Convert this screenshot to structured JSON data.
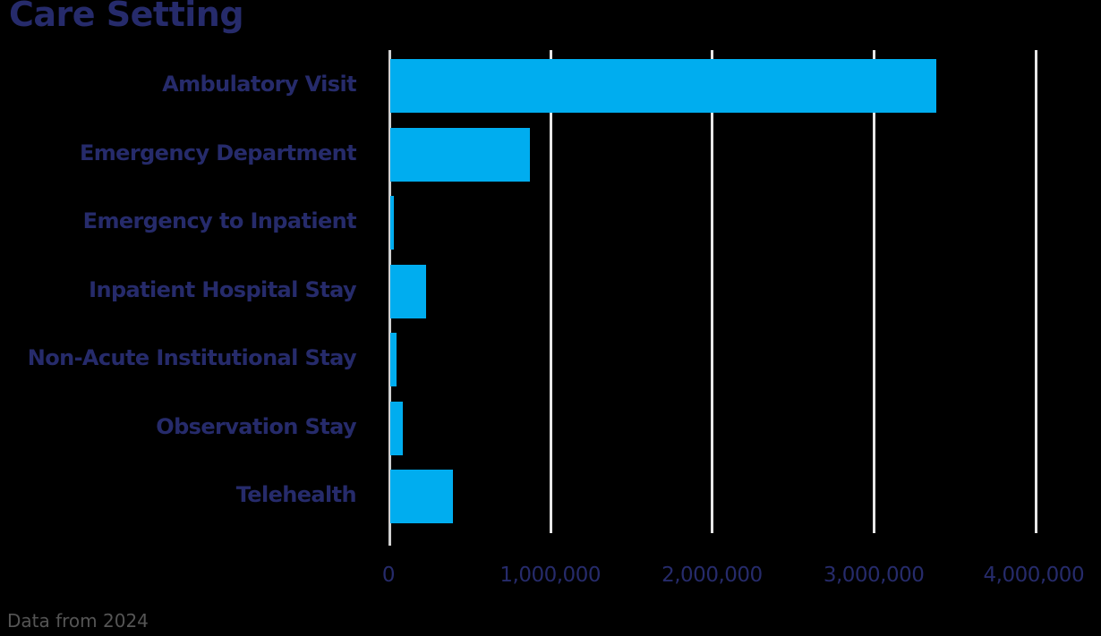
{
  "title": "Care Setting",
  "footnote": "Data from 2024",
  "colors": {
    "bar": "#00adef",
    "text": "#262b6b",
    "grid": "#e6e6e6",
    "background": "#000000"
  },
  "ticks": [
    "0",
    "1,000,000",
    "2,000,000",
    "3,000,000",
    "4,000,000"
  ],
  "categories": [
    "Ambulatory Visit",
    "Emergency Department",
    "Emergency to Inpatient",
    "Inpatient Hospital Stay",
    "Non-Acute Institutional Stay",
    "Observation Stay",
    "Telehealth"
  ],
  "chart_data": {
    "type": "bar",
    "orientation": "horizontal",
    "title": "Care Setting",
    "xlabel": "",
    "ylabel": "",
    "categories": [
      "Ambulatory Visit",
      "Emergency Department",
      "Emergency to Inpatient",
      "Inpatient Hospital Stay",
      "Non-Acute Institutional Stay",
      "Observation Stay",
      "Telehealth"
    ],
    "values": [
      3375000,
      865000,
      20000,
      220000,
      38000,
      77000,
      385000
    ],
    "xlim": [
      0,
      4000000
    ],
    "xticks": [
      0,
      1000000,
      2000000,
      3000000,
      4000000
    ],
    "grid": "vertical",
    "legend": "none",
    "annotation": "Data from 2024"
  }
}
